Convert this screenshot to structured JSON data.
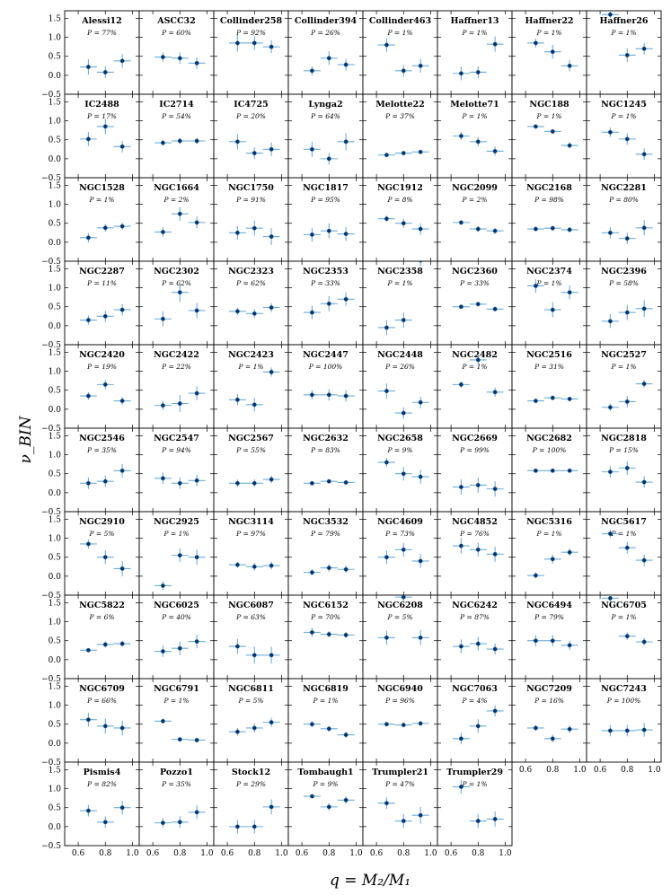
{
  "chart_data": {
    "type": "scatter",
    "xlabel": "q = M₂/M₁",
    "ylabel": "ν_BIN",
    "x": [
      0.675,
      0.8,
      0.925
    ],
    "xlim": [
      0.5,
      1.05
    ],
    "ylim": [
      -0.5,
      1.7
    ],
    "xticks": [
      "0.6",
      "0.8",
      "1.0"
    ],
    "yticks": [
      "−0.5",
      "0.0",
      "0.5",
      "1.0",
      "1.5"
    ],
    "grid": false,
    "colors": {
      "error_bar": "#6baed6",
      "marker": "#08306b"
    },
    "panels": [
      {
        "name": "Alessi12",
        "p": "P = 77%",
        "y": [
          0.22,
          0.08,
          0.38
        ],
        "err": [
          0.2,
          0.15,
          0.18
        ]
      },
      {
        "name": "ASCC32",
        "p": "P = 60%",
        "y": [
          0.48,
          0.45,
          0.32
        ],
        "err": [
          0.12,
          0.15,
          0.15
        ]
      },
      {
        "name": "Collinder258",
        "p": "P = 92%",
        "y": [
          0.85,
          0.85,
          0.75
        ],
        "err": [
          0.22,
          0.18,
          0.17
        ]
      },
      {
        "name": "Collinder394",
        "p": "P = 26%",
        "y": [
          0.12,
          0.45,
          0.28
        ],
        "err": [
          0.12,
          0.18,
          0.15
        ]
      },
      {
        "name": "Collinder463",
        "p": "P = 1%",
        "y": [
          0.8,
          0.12,
          0.25
        ],
        "err": [
          0.18,
          0.15,
          0.18
        ]
      },
      {
        "name": "Haffner13",
        "p": "P = 1%",
        "y": [
          0.05,
          0.08,
          0.82
        ],
        "err": [
          0.18,
          0.15,
          0.2
        ]
      },
      {
        "name": "Haffner22",
        "p": "P = 1%",
        "y": [
          0.85,
          0.62,
          0.25
        ],
        "err": [
          0.12,
          0.18,
          0.15
        ]
      },
      {
        "name": "Haffner26",
        "p": "P = 1%",
        "y": [
          1.6,
          0.53,
          0.7
        ],
        "err": [
          0.1,
          0.18,
          0.15
        ]
      },
      {
        "name": "IC2488",
        "p": "P = 17%",
        "y": [
          0.52,
          0.85,
          0.32
        ],
        "err": [
          0.18,
          0.2,
          0.15
        ]
      },
      {
        "name": "IC2714",
        "p": "P = 54%",
        "y": [
          0.42,
          0.47,
          0.47
        ],
        "err": [
          0.08,
          0.08,
          0.08
        ]
      },
      {
        "name": "IC4725",
        "p": "P = 20%",
        "y": [
          0.45,
          0.15,
          0.25
        ],
        "err": [
          0.2,
          0.15,
          0.18
        ]
      },
      {
        "name": "Lynga2",
        "p": "P = 64%",
        "y": [
          0.25,
          0.0,
          0.45
        ],
        "err": [
          0.2,
          0.15,
          0.22
        ]
      },
      {
        "name": "Melotte22",
        "p": "P = 37%",
        "y": [
          0.1,
          0.15,
          0.18
        ],
        "err": [
          0.05,
          0.05,
          0.05
        ]
      },
      {
        "name": "Melotte71",
        "p": "P = 1%",
        "y": [
          0.6,
          0.45,
          0.2
        ],
        "err": [
          0.1,
          0.12,
          0.12
        ]
      },
      {
        "name": "NGC188",
        "p": "P = 1%",
        "y": [
          0.85,
          0.72,
          0.35
        ],
        "err": [
          0.05,
          0.06,
          0.08
        ]
      },
      {
        "name": "NGC1245",
        "p": "P = 1%",
        "y": [
          0.7,
          0.52,
          0.12
        ],
        "err": [
          0.12,
          0.15,
          0.15
        ]
      },
      {
        "name": "NGC1528",
        "p": "P = 1%",
        "y": [
          0.12,
          0.38,
          0.42
        ],
        "err": [
          0.12,
          0.1,
          0.1
        ]
      },
      {
        "name": "NGC1664",
        "p": "P = 2%",
        "y": [
          0.27,
          0.75,
          0.52
        ],
        "err": [
          0.12,
          0.18,
          0.15
        ]
      },
      {
        "name": "NGC1750",
        "p": "P = 91%",
        "y": [
          0.25,
          0.37,
          0.15
        ],
        "err": [
          0.18,
          0.2,
          0.22
        ]
      },
      {
        "name": "NGC1817",
        "p": "P = 95%",
        "y": [
          0.2,
          0.3,
          0.22
        ],
        "err": [
          0.18,
          0.2,
          0.18
        ]
      },
      {
        "name": "NGC1912",
        "p": "P = 8%",
        "y": [
          0.62,
          0.5,
          0.35
        ],
        "err": [
          0.08,
          0.12,
          0.15
        ]
      },
      {
        "name": "NGC2099",
        "p": "P = 2%",
        "y": [
          0.52,
          0.35,
          0.3
        ],
        "err": [
          0.06,
          0.08,
          0.08
        ]
      },
      {
        "name": "NGC2168",
        "p": "P = 98%",
        "y": [
          0.35,
          0.37,
          0.33
        ],
        "err": [
          0.06,
          0.06,
          0.07
        ]
      },
      {
        "name": "NGC2281",
        "p": "P = 80%",
        "y": [
          0.25,
          0.1,
          0.38
        ],
        "err": [
          0.15,
          0.15,
          0.2
        ]
      },
      {
        "name": "NGC2287",
        "p": "P = 11%",
        "y": [
          0.15,
          0.25,
          0.42
        ],
        "err": [
          0.12,
          0.15,
          0.15
        ]
      },
      {
        "name": "NGC2302",
        "p": "P = 62%",
        "y": [
          0.18,
          0.88,
          0.4
        ],
        "err": [
          0.2,
          0.25,
          0.2
        ]
      },
      {
        "name": "NGC2323",
        "p": "P = 62%",
        "y": [
          0.38,
          0.32,
          0.48
        ],
        "err": [
          0.1,
          0.12,
          0.12
        ]
      },
      {
        "name": "NGC2353",
        "p": "P = 33%",
        "y": [
          0.35,
          0.58,
          0.7
        ],
        "err": [
          0.18,
          0.2,
          0.18
        ]
      },
      {
        "name": "NGC2358",
        "p": "P = 1%",
        "y": [
          -0.05,
          0.15,
          1.72
        ],
        "err": [
          0.2,
          0.2,
          0.15
        ]
      },
      {
        "name": "NGC2360",
        "p": "P = 33%",
        "y": [
          0.5,
          0.57,
          0.44
        ],
        "err": [
          0.05,
          0.06,
          0.06
        ]
      },
      {
        "name": "NGC2374",
        "p": "P = 1%",
        "y": [
          1.05,
          0.42,
          0.88
        ],
        "err": [
          0.18,
          0.2,
          0.18
        ]
      },
      {
        "name": "NGC2396",
        "p": "P = 58%",
        "y": [
          0.12,
          0.35,
          0.45
        ],
        "err": [
          0.18,
          0.2,
          0.22
        ]
      },
      {
        "name": "NGC2420",
        "p": "P = 19%",
        "y": [
          0.35,
          0.65,
          0.22
        ],
        "err": [
          0.1,
          0.12,
          0.1
        ]
      },
      {
        "name": "NGC2422",
        "p": "P = 22%",
        "y": [
          0.1,
          0.15,
          0.42
        ],
        "err": [
          0.12,
          0.22,
          0.18
        ]
      },
      {
        "name": "NGC2423",
        "p": "P = 1%",
        "y": [
          0.25,
          0.12,
          0.98
        ],
        "err": [
          0.15,
          0.18,
          0.12
        ]
      },
      {
        "name": "NGC2447",
        "p": "P = 100%",
        "y": [
          0.38,
          0.38,
          0.35
        ],
        "err": [
          0.12,
          0.15,
          0.15
        ]
      },
      {
        "name": "NGC2448",
        "p": "P = 26%",
        "y": [
          0.48,
          -0.1,
          0.18
        ],
        "err": [
          0.2,
          0.15,
          0.15
        ]
      },
      {
        "name": "NGC2482",
        "p": "P = 1%",
        "y": [
          0.65,
          1.3,
          0.45
        ],
        "err": [
          0.08,
          0.15,
          0.12
        ]
      },
      {
        "name": "NGC2516",
        "p": "P = 31%",
        "y": [
          0.22,
          0.3,
          0.27
        ],
        "err": [
          0.05,
          0.06,
          0.06
        ]
      },
      {
        "name": "NGC2527",
        "p": "P = 1%",
        "y": [
          0.05,
          0.2,
          0.67
        ],
        "err": [
          0.1,
          0.15,
          0.1
        ]
      },
      {
        "name": "NGC2546",
        "p": "P = 35%",
        "y": [
          0.25,
          0.3,
          0.58
        ],
        "err": [
          0.15,
          0.15,
          0.18
        ]
      },
      {
        "name": "NGC2547",
        "p": "P = 94%",
        "y": [
          0.38,
          0.25,
          0.32
        ],
        "err": [
          0.15,
          0.15,
          0.15
        ]
      },
      {
        "name": "NGC2567",
        "p": "P = 55%",
        "y": [
          0.25,
          0.25,
          0.35
        ],
        "err": [
          0.1,
          0.1,
          0.1
        ]
      },
      {
        "name": "NGC2632",
        "p": "P = 83%",
        "y": [
          0.25,
          0.3,
          0.27
        ],
        "err": [
          0.05,
          0.05,
          0.05
        ]
      },
      {
        "name": "NGC2658",
        "p": "P = 9%",
        "y": [
          0.8,
          0.5,
          0.42
        ],
        "err": [
          0.12,
          0.18,
          0.18
        ]
      },
      {
        "name": "NGC2669",
        "p": "P = 99%",
        "y": [
          0.15,
          0.2,
          0.1
        ],
        "err": [
          0.2,
          0.2,
          0.2
        ]
      },
      {
        "name": "NGC2682",
        "p": "P = 100%",
        "y": [
          0.58,
          0.58,
          0.58
        ],
        "err": [
          0.05,
          0.05,
          0.05
        ]
      },
      {
        "name": "NGC2818",
        "p": "P = 15%",
        "y": [
          0.55,
          0.65,
          0.28
        ],
        "err": [
          0.15,
          0.18,
          0.15
        ]
      },
      {
        "name": "NGC2910",
        "p": "P = 5%",
        "y": [
          0.85,
          0.5,
          0.2
        ],
        "err": [
          0.12,
          0.18,
          0.2
        ]
      },
      {
        "name": "NGC2925",
        "p": "P = 1%",
        "y": [
          -0.25,
          0.55,
          0.5
        ],
        "err": [
          0.12,
          0.18,
          0.2
        ]
      },
      {
        "name": "NGC3114",
        "p": "P = 97%",
        "y": [
          0.3,
          0.25,
          0.28
        ],
        "err": [
          0.08,
          0.1,
          0.1
        ]
      },
      {
        "name": "NGC3532",
        "p": "P = 79%",
        "y": [
          0.1,
          0.22,
          0.18
        ],
        "err": [
          0.08,
          0.1,
          0.1
        ]
      },
      {
        "name": "NGC4609",
        "p": "P = 73%",
        "y": [
          0.5,
          0.7,
          0.4
        ],
        "err": [
          0.18,
          0.18,
          0.18
        ]
      },
      {
        "name": "NGC4852",
        "p": "P = 76%",
        "y": [
          0.8,
          0.7,
          0.58
        ],
        "err": [
          0.2,
          0.18,
          0.2
        ]
      },
      {
        "name": "NGC5316",
        "p": "P = 1%",
        "y": [
          0.02,
          0.45,
          0.63
        ],
        "err": [
          0.08,
          0.12,
          0.1
        ]
      },
      {
        "name": "NGC5617",
        "p": "P = 1%",
        "y": [
          1.12,
          0.75,
          0.42
        ],
        "err": [
          0.1,
          0.15,
          0.15
        ]
      },
      {
        "name": "NGC5822",
        "p": "P = 6%",
        "y": [
          0.25,
          0.4,
          0.42
        ],
        "err": [
          0.05,
          0.08,
          0.08
        ]
      },
      {
        "name": "NGC6025",
        "p": "P = 40%",
        "y": [
          0.22,
          0.3,
          0.48
        ],
        "err": [
          0.15,
          0.18,
          0.18
        ]
      },
      {
        "name": "NGC6087",
        "p": "P = 63%",
        "y": [
          0.35,
          0.12,
          0.12
        ],
        "err": [
          0.2,
          0.22,
          0.22
        ]
      },
      {
        "name": "NGC6152",
        "p": "P = 70%",
        "y": [
          0.72,
          0.67,
          0.65
        ],
        "err": [
          0.12,
          0.08,
          0.08
        ]
      },
      {
        "name": "NGC6208",
        "p": "P = 5%",
        "y": [
          0.58,
          1.65,
          0.58
        ],
        "err": [
          0.18,
          0.12,
          0.2
        ]
      },
      {
        "name": "NGC6242",
        "p": "P = 87%",
        "y": [
          0.35,
          0.42,
          0.28
        ],
        "err": [
          0.18,
          0.18,
          0.15
        ]
      },
      {
        "name": "NGC6494",
        "p": "P = 79%",
        "y": [
          0.5,
          0.5,
          0.38
        ],
        "err": [
          0.15,
          0.15,
          0.12
        ]
      },
      {
        "name": "NGC6705",
        "p": "P = 1%",
        "y": [
          1.62,
          0.62,
          0.47
        ],
        "err": [
          0.1,
          0.1,
          0.1
        ]
      },
      {
        "name": "NGC6709",
        "p": "P = 66%",
        "y": [
          0.62,
          0.45,
          0.4
        ],
        "err": [
          0.18,
          0.2,
          0.2
        ]
      },
      {
        "name": "NGC6791",
        "p": "P = 1%",
        "y": [
          0.58,
          0.1,
          0.08
        ],
        "err": [
          0.06,
          0.06,
          0.06
        ]
      },
      {
        "name": "NGC6811",
        "p": "P = 5%",
        "y": [
          0.3,
          0.4,
          0.55
        ],
        "err": [
          0.1,
          0.12,
          0.12
        ]
      },
      {
        "name": "NGC6819",
        "p": "P = 1%",
        "y": [
          0.5,
          0.38,
          0.22
        ],
        "err": [
          0.08,
          0.08,
          0.08
        ]
      },
      {
        "name": "NGC6940",
        "p": "P = 96%",
        "y": [
          0.5,
          0.48,
          0.52
        ],
        "err": [
          0.06,
          0.06,
          0.06
        ]
      },
      {
        "name": "NGC7063",
        "p": "P = 4%",
        "y": [
          0.12,
          0.45,
          0.85
        ],
        "err": [
          0.15,
          0.18,
          0.15
        ]
      },
      {
        "name": "NGC7209",
        "p": "P = 16%",
        "y": [
          0.4,
          0.12,
          0.37
        ],
        "err": [
          0.08,
          0.1,
          0.1
        ]
      },
      {
        "name": "NGC7243",
        "p": "P = 100%",
        "y": [
          0.33,
          0.33,
          0.35
        ],
        "err": [
          0.15,
          0.15,
          0.18
        ]
      },
      {
        "name": "Pismis4",
        "p": "P = 82%",
        "y": [
          0.42,
          0.12,
          0.5
        ],
        "err": [
          0.15,
          0.15,
          0.18
        ]
      },
      {
        "name": "Pozzo1",
        "p": "P = 35%",
        "y": [
          0.1,
          0.12,
          0.38
        ],
        "err": [
          0.12,
          0.15,
          0.18
        ]
      },
      {
        "name": "Stock12",
        "p": "P = 29%",
        "y": [
          0.0,
          0.0,
          0.52
        ],
        "err": [
          0.18,
          0.18,
          0.2
        ]
      },
      {
        "name": "Tombaugh1",
        "p": "P = 9%",
        "y": [
          0.8,
          0.52,
          0.7
        ],
        "err": [
          0.05,
          0.1,
          0.1
        ]
      },
      {
        "name": "Trumpler21",
        "p": "P = 47%",
        "y": [
          0.62,
          0.15,
          0.3
        ],
        "err": [
          0.15,
          0.18,
          0.22
        ]
      },
      {
        "name": "Trumpler29",
        "p": "P = 1%",
        "y": [
          1.05,
          0.15,
          0.2
        ],
        "err": [
          0.18,
          0.18,
          0.2
        ]
      }
    ]
  }
}
